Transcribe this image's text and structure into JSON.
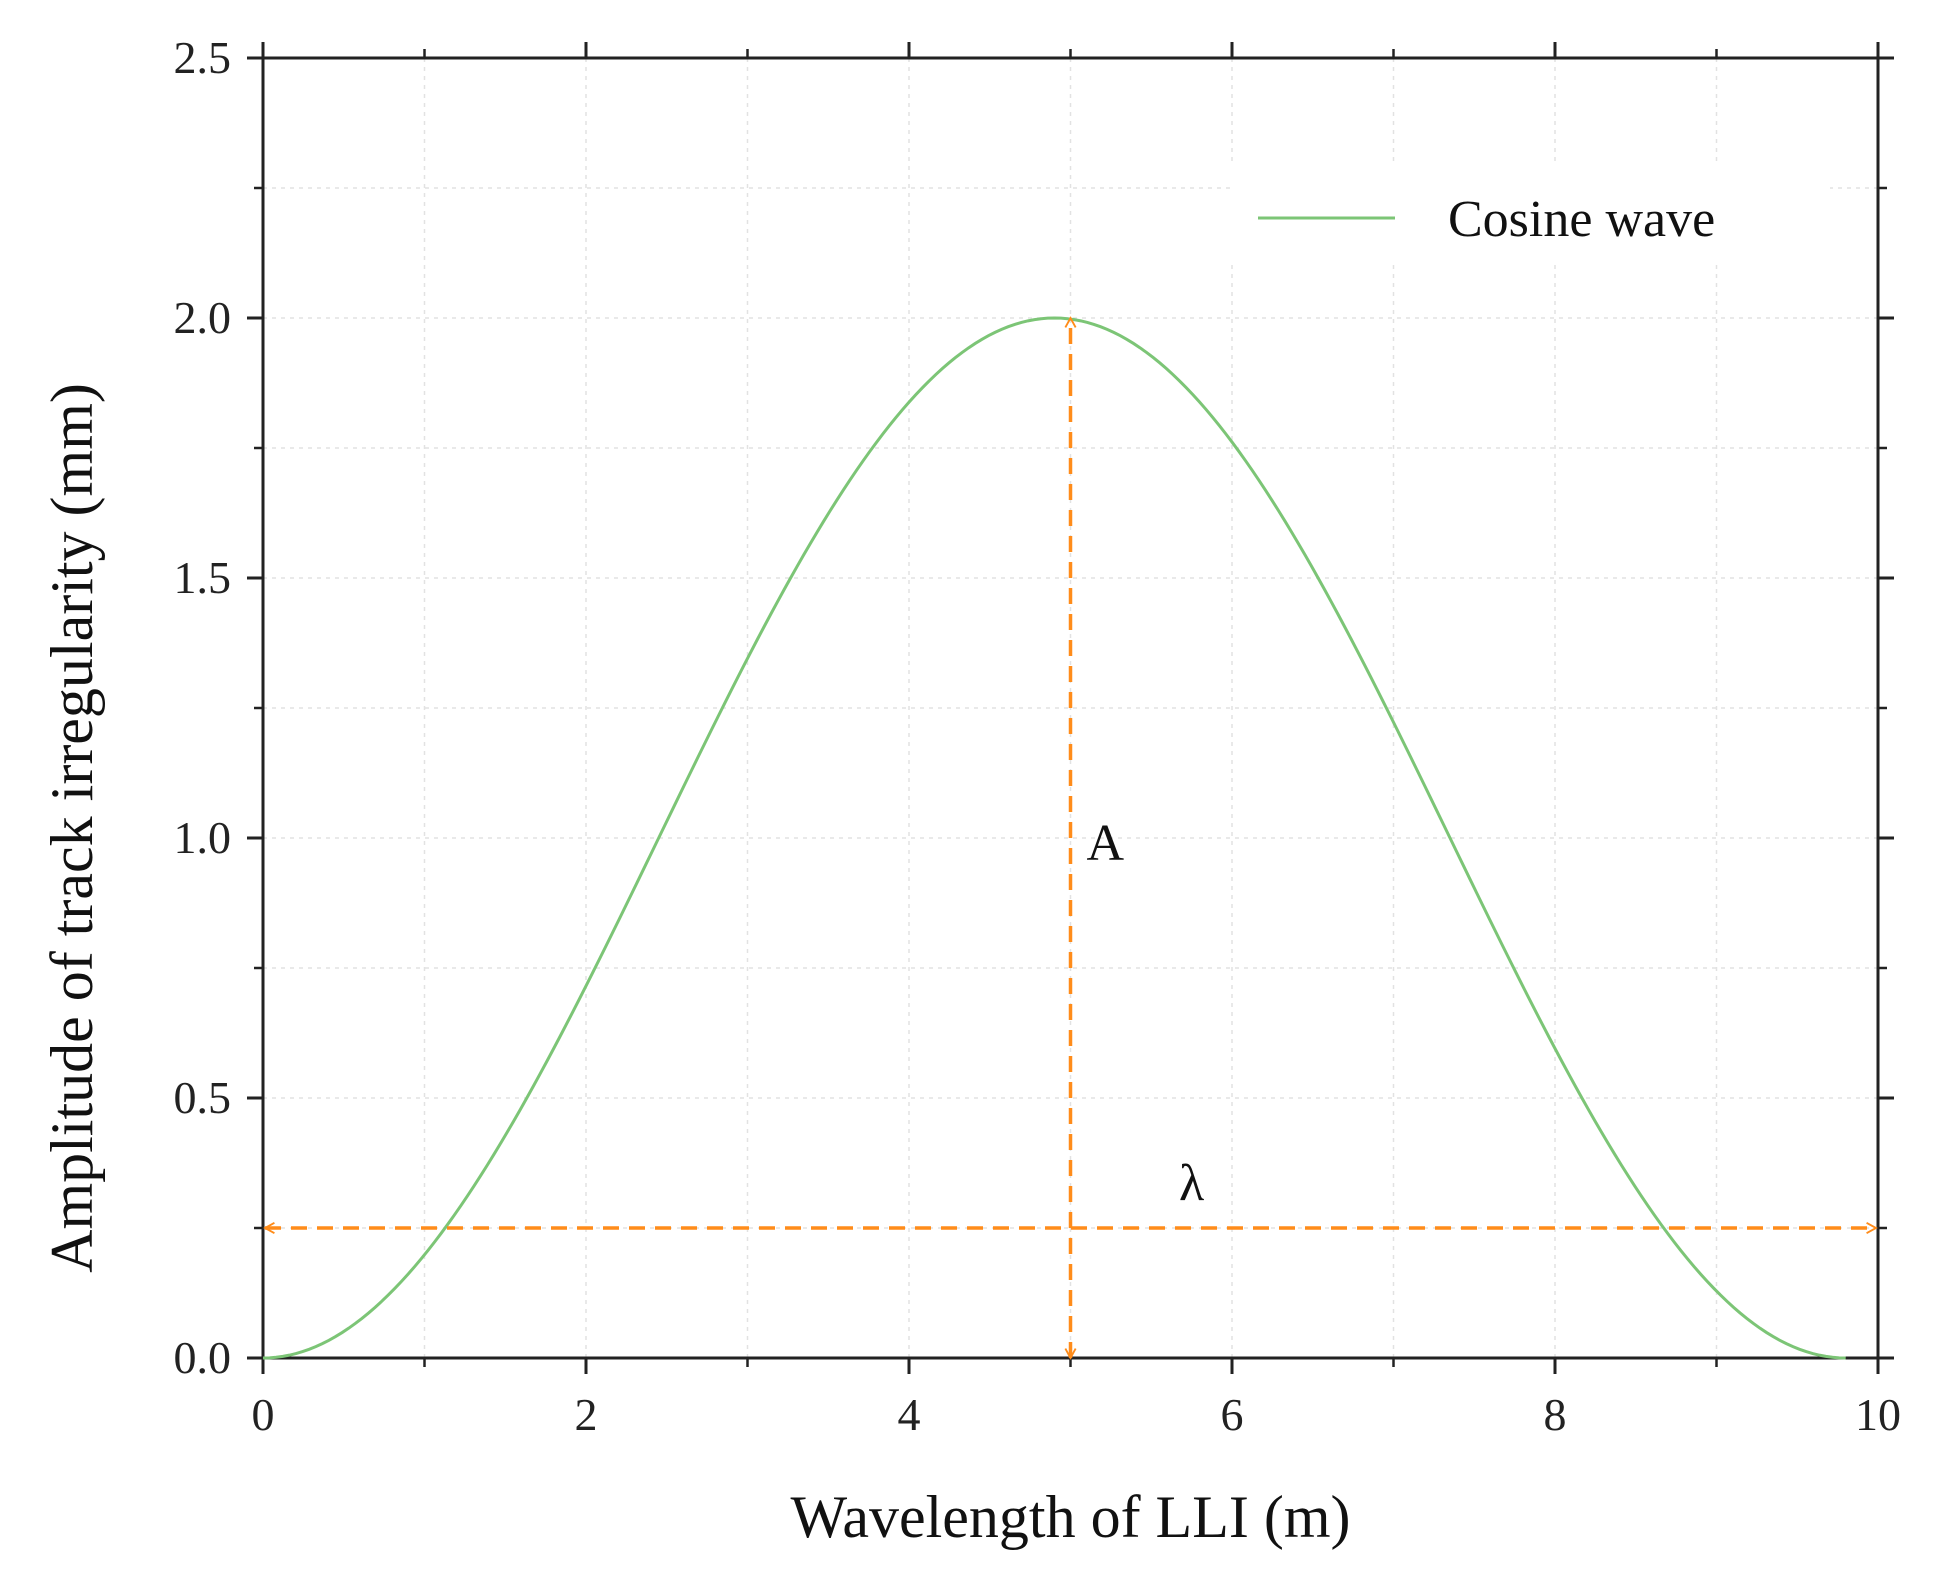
{
  "chart_data": {
    "type": "line",
    "title": "",
    "xlabel": "Wavelength of LLI (m)",
    "ylabel": "Amplitude of track irregularity (mm)",
    "xlim": [
      0,
      10
    ],
    "ylim": [
      0,
      2.5
    ],
    "xticks": [
      0,
      2,
      4,
      6,
      8,
      10
    ],
    "xtick_labels": [
      "0",
      "2",
      "4",
      "6",
      "8",
      "10"
    ],
    "yticks": [
      0.0,
      0.5,
      1.0,
      1.5,
      2.0,
      2.5
    ],
    "ytick_labels": [
      "0.0",
      "0.5",
      "1.0",
      "1.5",
      "2.0",
      "2.5"
    ],
    "grid": true,
    "legend_position": "top-right",
    "series": [
      {
        "name": "Cosine wave",
        "color": "#7cc576",
        "function": "1 - cos(2*pi*x/9.8)",
        "x": [
          0,
          0.5,
          1,
          1.5,
          2,
          2.5,
          3,
          3.5,
          4,
          4.5,
          4.9,
          5.5,
          6,
          6.5,
          7,
          7.5,
          8,
          8.5,
          9,
          9.5,
          9.8
        ],
        "y": [
          0,
          0.05,
          0.2,
          0.43,
          0.71,
          1.0,
          1.3,
          1.57,
          1.79,
          1.95,
          2.0,
          1.96,
          1.79,
          1.57,
          1.3,
          1.0,
          0.71,
          0.43,
          0.2,
          0.05,
          0
        ]
      }
    ],
    "annotations": [
      {
        "label": "A",
        "kind": "double-arrow",
        "orientation": "vertical",
        "color": "#ff8c1a",
        "x": 5.0,
        "y_from": 0,
        "y_to": 2.0
      },
      {
        "label": "λ",
        "kind": "double-arrow",
        "orientation": "horizontal",
        "color": "#ff8c1a",
        "y": 0.25,
        "x_from": 0,
        "x_to": 10
      }
    ]
  }
}
